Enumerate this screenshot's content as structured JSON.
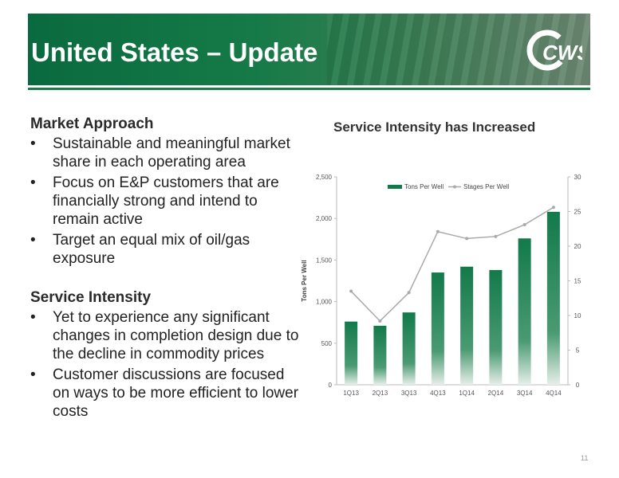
{
  "slide": {
    "title": "United States – Update",
    "logo_text": "CWS",
    "page_number": "11"
  },
  "left": {
    "sections": [
      {
        "heading": "Market Approach",
        "bullets": [
          "Sustainable and meaningful market share in each operating area",
          "Focus on E&P customers that are financially strong and intend to remain active",
          "Target an equal mix of oil/gas exposure"
        ]
      },
      {
        "heading": "Service Intensity",
        "bullets": [
          "Yet to experience any significant changes in completion design due to the decline in commodity prices",
          "Customer discussions are focused on ways to be more efficient to lower costs"
        ]
      }
    ],
    "bullet_glyph": "•"
  },
  "colors": {
    "brand_green": "#0a6a3f",
    "bar_green": "#127a4a",
    "line_grey": "#a9a9a9"
  },
  "chart_data": {
    "type": "bar",
    "title": "Service Intensity has Increased",
    "categories": [
      "1Q13",
      "2Q13",
      "3Q13",
      "4Q13",
      "1Q14",
      "2Q14",
      "3Q14",
      "4Q14"
    ],
    "series": [
      {
        "name": "Tons Per Well",
        "type": "bar",
        "axis": "left",
        "values": [
          760,
          710,
          870,
          1350,
          1420,
          1380,
          1760,
          2080
        ]
      },
      {
        "name": "Stages Per Well",
        "type": "line",
        "axis": "right",
        "values": [
          13.5,
          9.2,
          13.3,
          22.1,
          21.1,
          21.4,
          23.1,
          25.6
        ]
      }
    ],
    "ylabel": "Tons Per Well",
    "ylim": [
      0,
      2500
    ],
    "yticks": [
      "0",
      "500",
      "1,000",
      "1,500",
      "2,000",
      "2,500"
    ],
    "y2lim": [
      0,
      30
    ],
    "y2ticks": [
      "0",
      "5",
      "10",
      "15",
      "20",
      "25",
      "30"
    ],
    "legend": "top",
    "grid": false
  }
}
